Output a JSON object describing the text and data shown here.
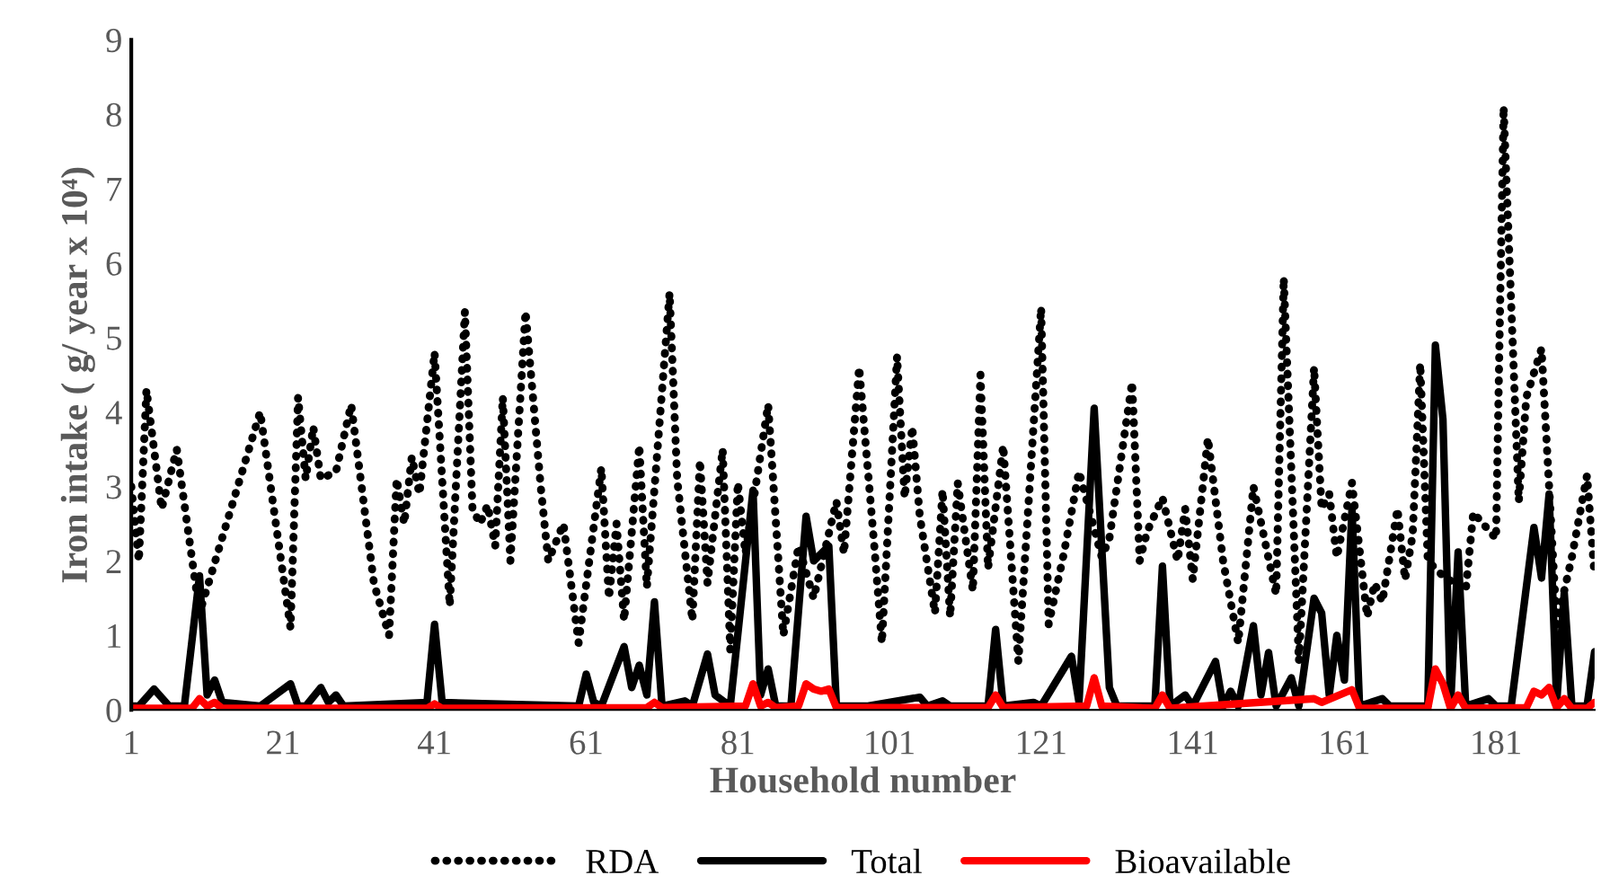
{
  "chart_data": {
    "type": "line",
    "xlabel": "Household number",
    "ylabel": "Iron intake ( g/ year x 10⁴)",
    "xlim": [
      1,
      194
    ],
    "xticks": [
      1,
      21,
      41,
      61,
      81,
      101,
      121,
      141,
      161,
      181
    ],
    "ylim": [
      0,
      9
    ],
    "yticks": [
      0,
      1,
      2,
      3,
      4,
      5,
      6,
      7,
      8,
      9
    ],
    "grid": false,
    "legend": "bottom",
    "marker": "none",
    "series": [
      {
        "name": "RDA",
        "color": "#000000",
        "line_style": "dotted",
        "x": [
          1,
          2,
          3,
          5,
          7,
          10,
          18,
          22,
          23,
          24,
          25,
          26,
          28,
          30,
          33,
          35,
          36,
          37,
          38,
          39,
          41,
          43,
          45,
          46,
          47,
          48,
          49,
          50,
          51,
          53,
          55,
          56,
          58,
          60,
          63,
          64,
          65,
          66,
          68,
          69,
          72,
          73,
          75,
          76,
          77,
          79,
          80,
          81,
          82,
          85,
          87,
          89,
          91,
          94,
          95,
          97,
          99,
          100,
          102,
          103,
          104,
          105,
          107,
          108,
          109,
          110,
          112,
          113,
          114,
          116,
          118,
          121,
          122,
          124,
          126,
          129,
          130,
          133,
          134,
          135,
          137,
          139,
          140,
          141,
          143,
          145,
          147,
          149,
          152,
          153,
          155,
          157,
          158,
          159,
          160,
          162,
          164,
          165,
          166,
          168,
          169,
          170,
          171,
          172,
          174,
          177,
          178,
          181,
          182,
          184,
          185,
          187,
          189,
          191,
          193,
          194
        ],
        "values": [
          3.0,
          2.0,
          4.3,
          2.7,
          3.5,
          1.3,
          4.0,
          1.1,
          4.2,
          3.1,
          3.8,
          3.1,
          3.2,
          4.1,
          1.7,
          1.0,
          3.1,
          2.5,
          3.4,
          2.9,
          4.8,
          1.4,
          5.35,
          2.7,
          2.5,
          2.75,
          2.2,
          4.2,
          2.0,
          5.35,
          3.0,
          2.0,
          2.5,
          0.9,
          3.25,
          1.5,
          2.5,
          1.2,
          3.55,
          1.65,
          5.6,
          3.1,
          1.2,
          3.35,
          1.7,
          3.5,
          0.8,
          3.05,
          2.1,
          4.1,
          1.0,
          2.2,
          1.5,
          2.8,
          2.1,
          4.6,
          2.2,
          0.9,
          4.75,
          2.85,
          3.8,
          2.6,
          1.3,
          2.95,
          1.25,
          3.05,
          1.6,
          4.5,
          1.9,
          3.55,
          0.65,
          5.4,
          1.15,
          2.1,
          3.2,
          2.05,
          2.3,
          4.4,
          2.0,
          2.4,
          2.85,
          2.0,
          2.7,
          1.75,
          3.65,
          2.0,
          0.9,
          3.0,
          1.55,
          5.8,
          0.65,
          4.6,
          2.7,
          2.9,
          2.05,
          3.05,
          1.25,
          1.7,
          1.45,
          2.7,
          1.75,
          2.35,
          4.65,
          2.0,
          1.8,
          1.6,
          2.65,
          2.3,
          8.1,
          2.8,
          4.2,
          4.85,
          1.15,
          2.05,
          3.15,
          1.8
        ]
      },
      {
        "name": "Total",
        "color": "#000000",
        "line_style": "solid",
        "x": [
          1,
          2,
          4,
          6,
          8,
          10,
          11,
          12,
          13,
          18,
          22,
          23,
          24,
          26,
          27,
          28,
          29,
          40,
          41,
          42,
          60,
          61,
          62,
          63,
          66,
          67,
          68,
          69,
          70,
          71,
          74,
          75,
          77,
          78,
          80,
          83,
          84,
          85,
          86,
          88,
          90,
          91,
          93,
          94,
          98,
          105,
          106,
          108,
          109,
          114,
          115,
          116,
          120,
          121,
          125,
          126,
          128,
          130,
          131,
          136,
          137,
          138,
          140,
          141,
          144,
          145,
          146,
          147,
          149,
          150,
          151,
          152,
          154,
          155,
          157,
          158,
          159,
          160,
          161,
          162,
          163,
          166,
          167,
          172,
          173,
          174,
          175,
          176,
          177,
          180,
          181,
          183,
          186,
          187,
          188,
          189,
          190,
          191,
          193,
          194
        ],
        "values": [
          0.05,
          0.05,
          0.28,
          0.05,
          0.05,
          1.8,
          0.2,
          0.4,
          0.1,
          0.05,
          0.35,
          0.05,
          0.05,
          0.3,
          0.1,
          0.2,
          0.05,
          0.1,
          1.15,
          0.1,
          0.05,
          0.48,
          0.1,
          0.05,
          0.85,
          0.3,
          0.6,
          0.2,
          1.45,
          0.05,
          0.12,
          0.05,
          0.75,
          0.2,
          0.05,
          2.95,
          0.2,
          0.55,
          0.05,
          0.05,
          2.6,
          2.0,
          2.2,
          0.05,
          0.05,
          0.17,
          0.05,
          0.12,
          0.05,
          0.05,
          1.08,
          0.05,
          0.1,
          0.05,
          0.72,
          0.1,
          4.05,
          0.3,
          0.05,
          0.05,
          1.93,
          0.05,
          0.2,
          0.05,
          0.65,
          0.05,
          0.25,
          0.05,
          1.13,
          0.2,
          0.77,
          0.05,
          0.43,
          0.05,
          1.5,
          1.3,
          0.2,
          1.0,
          0.4,
          2.7,
          0.05,
          0.15,
          0.05,
          0.05,
          4.9,
          3.9,
          0.05,
          2.12,
          0.05,
          0.15,
          0.05,
          0.05,
          2.45,
          1.77,
          2.9,
          0.1,
          1.57,
          0.05,
          0.05,
          0.78
        ]
      },
      {
        "name": "Bioavailable",
        "color": "#ff0000",
        "line_style": "solid",
        "x": [
          1,
          9,
          10,
          11,
          12,
          13,
          40,
          41,
          42,
          69,
          70,
          71,
          82,
          83,
          84,
          85,
          86,
          89,
          90,
          91,
          92,
          93,
          94,
          114,
          115,
          116,
          127,
          128,
          129,
          136,
          137,
          138,
          157,
          158,
          162,
          163,
          172,
          173,
          174,
          175,
          176,
          177,
          185,
          186,
          187,
          188,
          189,
          190,
          191,
          193,
          194
        ],
        "values": [
          0.02,
          0.02,
          0.15,
          0.05,
          0.1,
          0.02,
          0.02,
          0.08,
          0.02,
          0.03,
          0.1,
          0.03,
          0.05,
          0.35,
          0.05,
          0.1,
          0.03,
          0.05,
          0.35,
          0.28,
          0.25,
          0.28,
          0.03,
          0.03,
          0.2,
          0.03,
          0.05,
          0.43,
          0.05,
          0.02,
          0.2,
          0.02,
          0.15,
          0.1,
          0.27,
          0.02,
          0.02,
          0.55,
          0.35,
          0.02,
          0.2,
          0.02,
          0.03,
          0.25,
          0.2,
          0.3,
          0.03,
          0.15,
          0.02,
          0.02,
          0.1
        ]
      }
    ]
  }
}
